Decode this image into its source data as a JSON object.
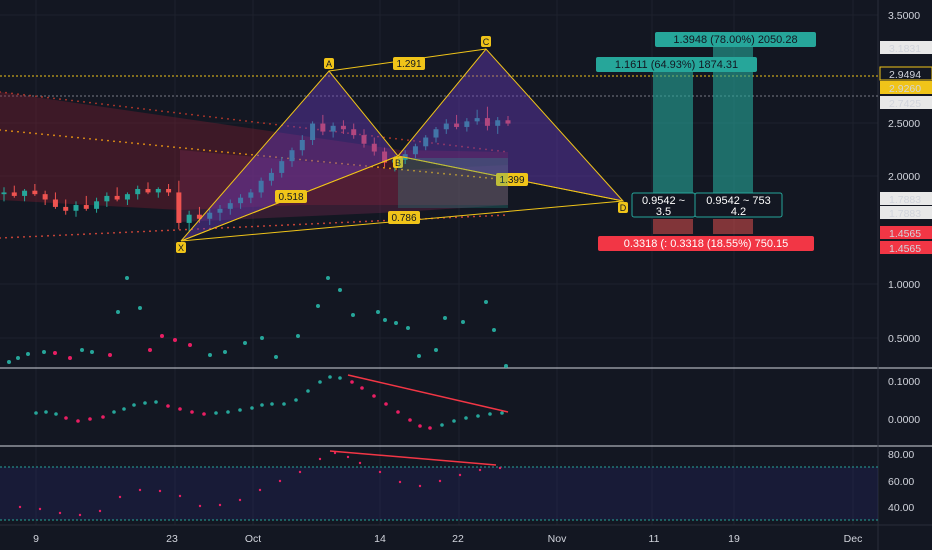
{
  "chart_data": {
    "type": "candlestick",
    "main": {
      "y_ticks": [
        "3.5000",
        "2.5000",
        "2.0000",
        "1.0000",
        "0.5000"
      ],
      "price_labels": [
        {
          "text": "3.1831",
          "bg": "#e8e8e8",
          "fg": "#131722"
        },
        {
          "text": "2.9494",
          "bg": "#131722",
          "fg": "#f0c419",
          "border": "#f0c419"
        },
        {
          "text": "2.9260",
          "bg": "#f0c419",
          "fg": "#131722"
        },
        {
          "text": "2.7425",
          "bg": "#e8e8e8",
          "fg": "#131722"
        },
        {
          "text": "1.7883",
          "bg": "#e8e8e8",
          "fg": "#131722"
        },
        {
          "text": "1.7883",
          "bg": "#e8e8e8",
          "fg": "#131722"
        },
        {
          "text": "1.4565",
          "bg": "#f23645",
          "fg": "#ffffff"
        },
        {
          "text": "1.4565",
          "bg": "#f23645",
          "fg": "#ffffff"
        }
      ],
      "pattern_points": [
        {
          "name": "X",
          "date": "Sep 23"
        },
        {
          "name": "A",
          "date": "Oct 09"
        },
        {
          "name": "B",
          "date": "Oct 16"
        },
        {
          "name": "C",
          "date": "Oct 24"
        },
        {
          "name": "D",
          "date": "Nov 08"
        }
      ],
      "ratio_labels": [
        "1.291",
        "0.518",
        "1.399",
        "0.786"
      ],
      "positions": [
        {
          "target": "1.3948 (78.00%) 2050.28",
          "entry": "0.9542 ~ 753",
          "entry2": "4.2",
          "stop": "",
          "color": "#26a69a"
        },
        {
          "target": "1.1611 (64.93%) 1874.31",
          "entry": "0.9542 ~",
          "entry2": "3.5",
          "stop": "0.3318 (: 0.3318 (18.55%) 750.15",
          "color": "#26a69a"
        }
      ],
      "candles": [
        [
          1.78,
          1.86,
          1.7,
          1.8
        ],
        [
          1.8,
          1.88,
          1.74,
          1.76
        ],
        [
          1.76,
          1.84,
          1.7,
          1.82
        ],
        [
          1.82,
          1.9,
          1.76,
          1.78
        ],
        [
          1.78,
          1.82,
          1.66,
          1.72
        ],
        [
          1.72,
          1.8,
          1.62,
          1.64
        ],
        [
          1.64,
          1.72,
          1.56,
          1.6
        ],
        [
          1.6,
          1.7,
          1.54,
          1.66
        ],
        [
          1.66,
          1.76,
          1.6,
          1.62
        ],
        [
          1.62,
          1.74,
          1.58,
          1.7
        ],
        [
          1.7,
          1.8,
          1.64,
          1.76
        ],
        [
          1.76,
          1.86,
          1.7,
          1.72
        ],
        [
          1.72,
          1.8,
          1.66,
          1.78
        ],
        [
          1.78,
          1.88,
          1.72,
          1.84
        ],
        [
          1.84,
          1.92,
          1.78,
          1.8
        ],
        [
          1.8,
          1.86,
          1.74,
          1.84
        ],
        [
          1.84,
          1.9,
          1.76,
          1.8
        ],
        [
          1.8,
          1.94,
          1.42,
          1.48
        ],
        [
          1.48,
          1.6,
          1.4,
          1.56
        ],
        [
          1.56,
          1.64,
          1.48,
          1.52
        ],
        [
          1.52,
          1.62,
          1.46,
          1.58
        ],
        [
          1.58,
          1.66,
          1.5,
          1.62
        ],
        [
          1.62,
          1.72,
          1.56,
          1.68
        ],
        [
          1.68,
          1.78,
          1.62,
          1.74
        ],
        [
          1.74,
          1.84,
          1.68,
          1.8
        ],
        [
          1.8,
          1.98,
          1.74,
          1.94
        ],
        [
          1.94,
          2.1,
          1.88,
          2.04
        ],
        [
          2.04,
          2.26,
          1.98,
          2.2
        ],
        [
          2.2,
          2.4,
          2.12,
          2.36
        ],
        [
          2.36,
          2.6,
          2.28,
          2.52
        ],
        [
          2.52,
          2.84,
          2.44,
          2.8
        ],
        [
          2.8,
          2.96,
          2.6,
          2.66
        ],
        [
          2.66,
          2.82,
          2.56,
          2.76
        ],
        [
          2.76,
          2.86,
          2.62,
          2.7
        ],
        [
          2.7,
          2.8,
          2.54,
          2.6
        ],
        [
          2.6,
          2.7,
          2.4,
          2.46
        ],
        [
          2.46,
          2.56,
          2.28,
          2.34
        ],
        [
          2.34,
          2.4,
          2.12,
          2.18
        ],
        [
          2.18,
          2.28,
          2.06,
          2.22
        ],
        [
          2.22,
          2.36,
          2.16,
          2.3
        ],
        [
          2.3,
          2.46,
          2.24,
          2.42
        ],
        [
          2.42,
          2.6,
          2.36,
          2.56
        ],
        [
          2.56,
          2.74,
          2.48,
          2.7
        ],
        [
          2.7,
          2.88,
          2.62,
          2.8
        ],
        [
          2.8,
          2.96,
          2.7,
          2.74
        ],
        [
          2.74,
          2.9,
          2.66,
          2.84
        ],
        [
          2.84,
          3.06,
          2.78,
          2.9
        ],
        [
          2.9,
          3.12,
          2.68,
          2.76
        ],
        [
          2.76,
          2.92,
          2.62,
          2.86
        ],
        [
          2.86,
          2.94,
          2.76,
          2.8
        ]
      ]
    },
    "indicator1": {
      "y_ticks": [
        "0.1000",
        "0.0000"
      ]
    },
    "indicator2": {
      "y_ticks": [
        "80.00",
        "60.00",
        "40.00"
      ]
    },
    "x_ticks": [
      "9",
      "23",
      "Oct",
      "14",
      "22",
      "Nov",
      "11",
      "19",
      "Dec"
    ]
  }
}
